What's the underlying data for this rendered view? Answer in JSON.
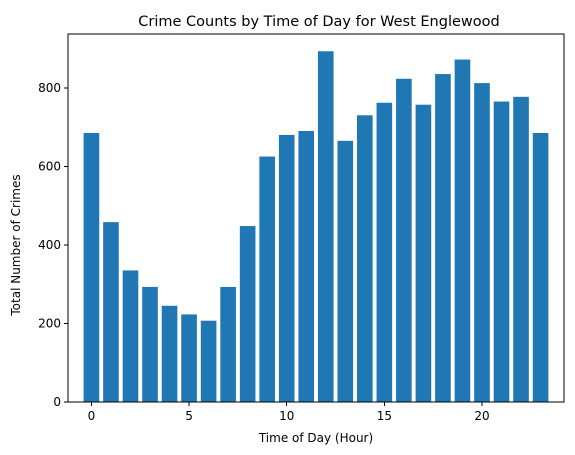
{
  "chart_data": {
    "type": "bar",
    "title": "Crime Counts by Time of Day for West Englewood",
    "xlabel": "Time of Day (Hour)",
    "ylabel": "Total Number of Crimes",
    "x": [
      0,
      1,
      2,
      3,
      4,
      5,
      6,
      7,
      8,
      9,
      10,
      11,
      12,
      13,
      14,
      15,
      16,
      17,
      18,
      19,
      20,
      21,
      22,
      23
    ],
    "values": [
      685,
      458,
      335,
      293,
      245,
      223,
      207,
      293,
      448,
      625,
      680,
      690,
      893,
      665,
      730,
      762,
      823,
      757,
      835,
      872,
      812,
      765,
      777,
      685
    ],
    "xlim": [
      -1.2,
      24.2
    ],
    "ylim": [
      0,
      937
    ],
    "xticks": [
      0,
      5,
      10,
      15,
      20
    ],
    "yticks": [
      0,
      200,
      400,
      600,
      800
    ],
    "bar_color": "#1f77b4",
    "grid": false,
    "legend": "none"
  }
}
